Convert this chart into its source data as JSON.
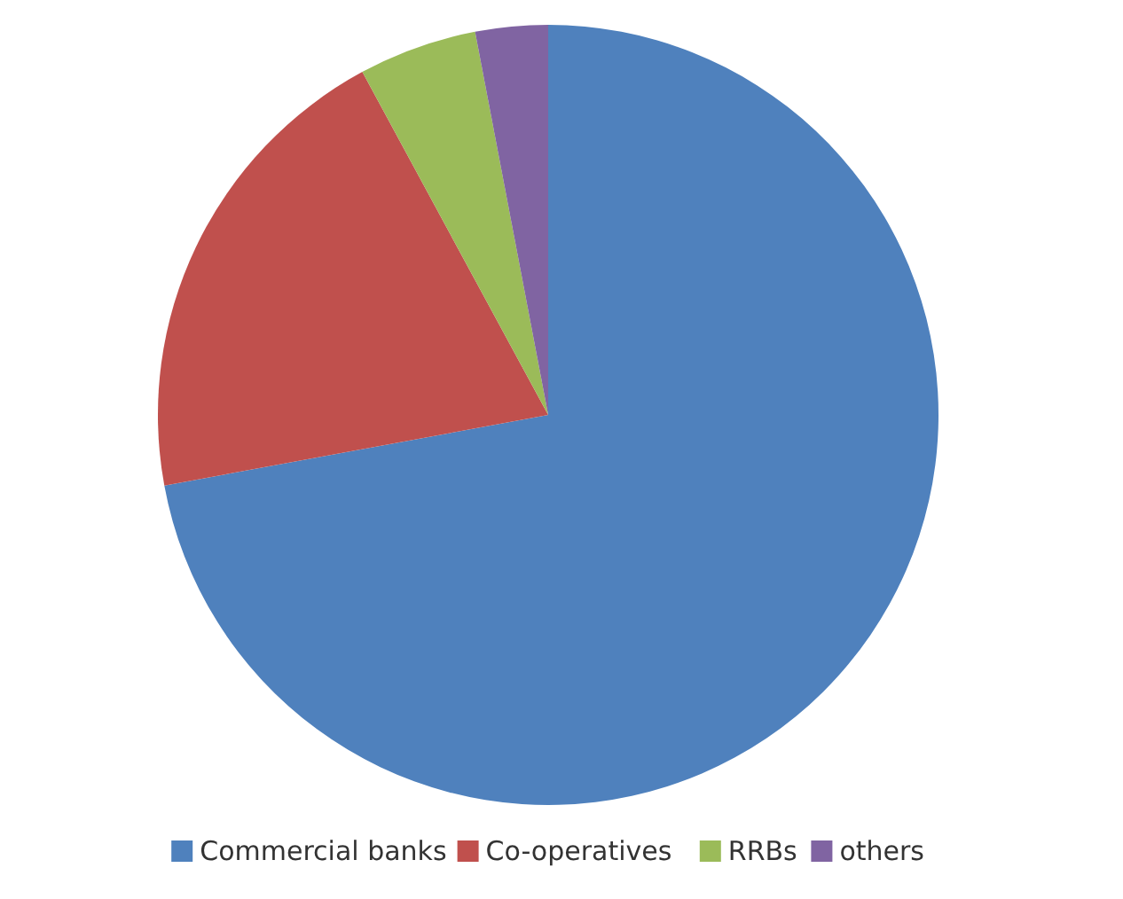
{
  "chart_data": {
    "type": "pie",
    "categories": [
      "Commercial banks",
      "Co-operatives",
      "RRBs",
      "others"
    ],
    "values": [
      72.1,
      20.0,
      4.9,
      3.0
    ],
    "colors": [
      "#4f81bd",
      "#c0504d",
      "#9bbb59",
      "#8064a2"
    ],
    "legend": "bottom"
  }
}
